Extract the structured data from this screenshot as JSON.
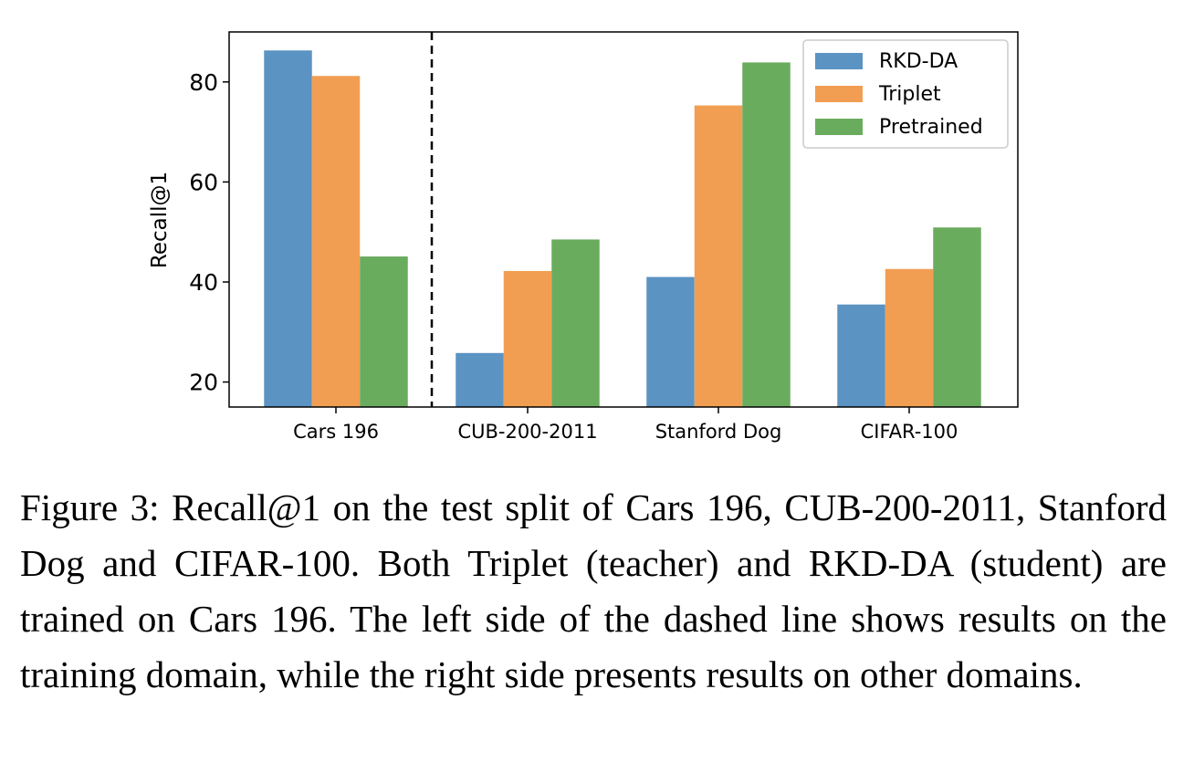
{
  "chart_data": {
    "type": "bar",
    "title": "",
    "xlabel": "",
    "ylabel": "Recall@1",
    "ylim": [
      15,
      90
    ],
    "yticks": [
      20,
      40,
      60,
      80
    ],
    "categories": [
      "Cars 196",
      "CUB-200-2011",
      "Stanford Dog",
      "CIFAR-100"
    ],
    "series": [
      {
        "name": "RKD-DA",
        "color": "#5b93c3",
        "values": [
          86.3,
          25.8,
          41.0,
          35.5
        ]
      },
      {
        "name": "Triplet",
        "color": "#f29e52",
        "values": [
          81.2,
          42.2,
          75.3,
          42.6
        ]
      },
      {
        "name": "Pretrained",
        "color": "#6aac5e",
        "values": [
          45.1,
          48.5,
          83.9,
          50.9
        ]
      }
    ],
    "divider": "dashed line between Cars 196 and CUB-200-2011",
    "legend_position": "top-right",
    "grid": false
  },
  "caption": "Figure 3: Recall@1 on the test split of Cars 196, CUB-200-2011, Stanford Dog and CIFAR-100. Both Triplet (teacher) and RKD-DA (student) are trained on Cars 196. The left side of the dashed line shows results on the training domain, while the right side presents results on other domains."
}
